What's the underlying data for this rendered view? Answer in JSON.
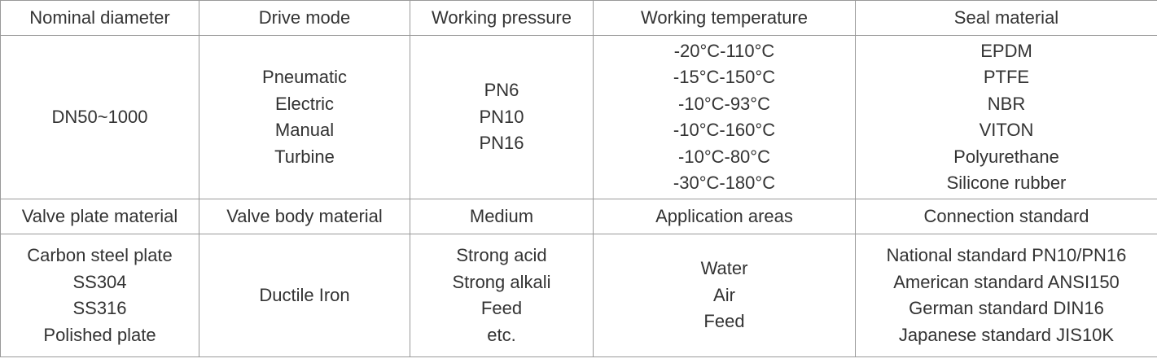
{
  "table": {
    "rows": [
      [
        "Nominal diameter",
        "Drive mode",
        "Working pressure",
        "Working temperature",
        "Seal material"
      ],
      [
        [
          "DN50~1000"
        ],
        [
          "Pneumatic",
          "Electric",
          "Manual",
          "Turbine"
        ],
        [
          "PN6",
          "PN10",
          "PN16"
        ],
        [
          "-20°C-110°C",
          "-15°C-150°C",
          "-10°C-93°C",
          "-10°C-160°C",
          "-10°C-80°C",
          "-30°C-180°C"
        ],
        [
          "EPDM",
          "PTFE",
          "NBR",
          "VITON",
          "Polyurethane",
          "Silicone rubber"
        ]
      ],
      [
        "Valve plate material",
        "Valve body material",
        "Medium",
        "Application areas",
        "Connection standard"
      ],
      [
        [
          "Carbon steel plate",
          "SS304",
          "SS316",
          "Polished plate"
        ],
        [
          "Ductile Iron"
        ],
        [
          "Strong acid",
          "Strong alkali",
          "Feed",
          "etc."
        ],
        [
          "Water",
          "Air",
          "Feed"
        ],
        [
          "National standard PN10/PN16",
          "American standard ANSI150",
          "German standard DIN16",
          "Japanese standard JIS10K"
        ]
      ]
    ]
  }
}
